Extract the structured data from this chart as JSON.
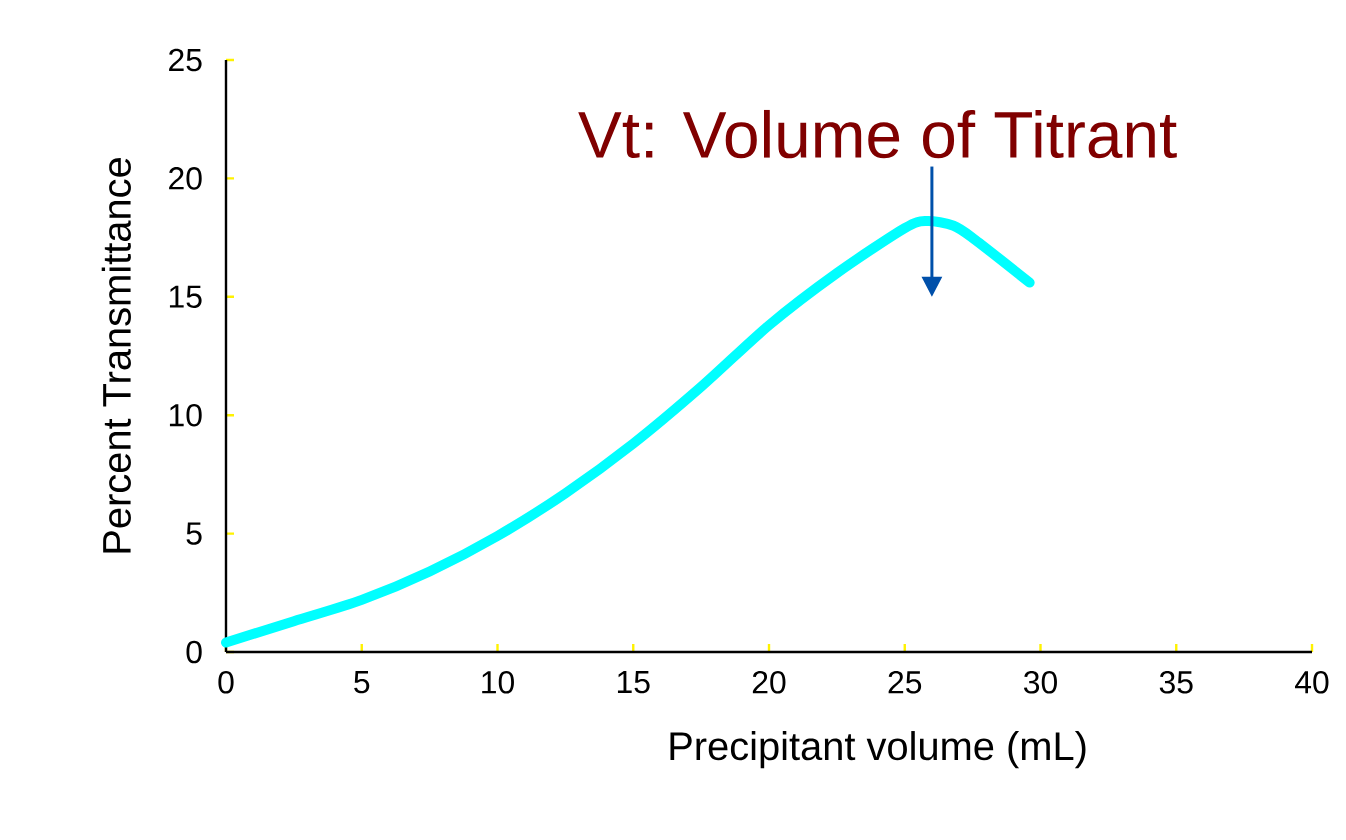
{
  "chart_data": {
    "type": "line",
    "xlabel": "Precipitant volume (mL)",
    "ylabel": "Percent Transmittance",
    "x": [
      0,
      2.5,
      5,
      7.5,
      10,
      12.5,
      15,
      17.5,
      20,
      22.5,
      25,
      25.8,
      26.8,
      27.6,
      29.6
    ],
    "series": [
      {
        "color": "#00ffff",
        "values": [
          0.4,
          1.3,
          2.2,
          3.4,
          4.9,
          6.7,
          8.8,
          11.2,
          13.8,
          16,
          17.9,
          18.2,
          18,
          17.4,
          15.6
        ]
      }
    ],
    "xlim": [
      0,
      40
    ],
    "ylim": [
      0,
      25
    ],
    "xticks": [
      0,
      5,
      10,
      15,
      20,
      25,
      30,
      35,
      40
    ],
    "yticks": [
      0,
      5,
      10,
      15,
      20,
      25
    ],
    "marker": "none",
    "line_style": "solid",
    "annotations": [
      "Vt: Volume of Titrant"
    ]
  }
}
